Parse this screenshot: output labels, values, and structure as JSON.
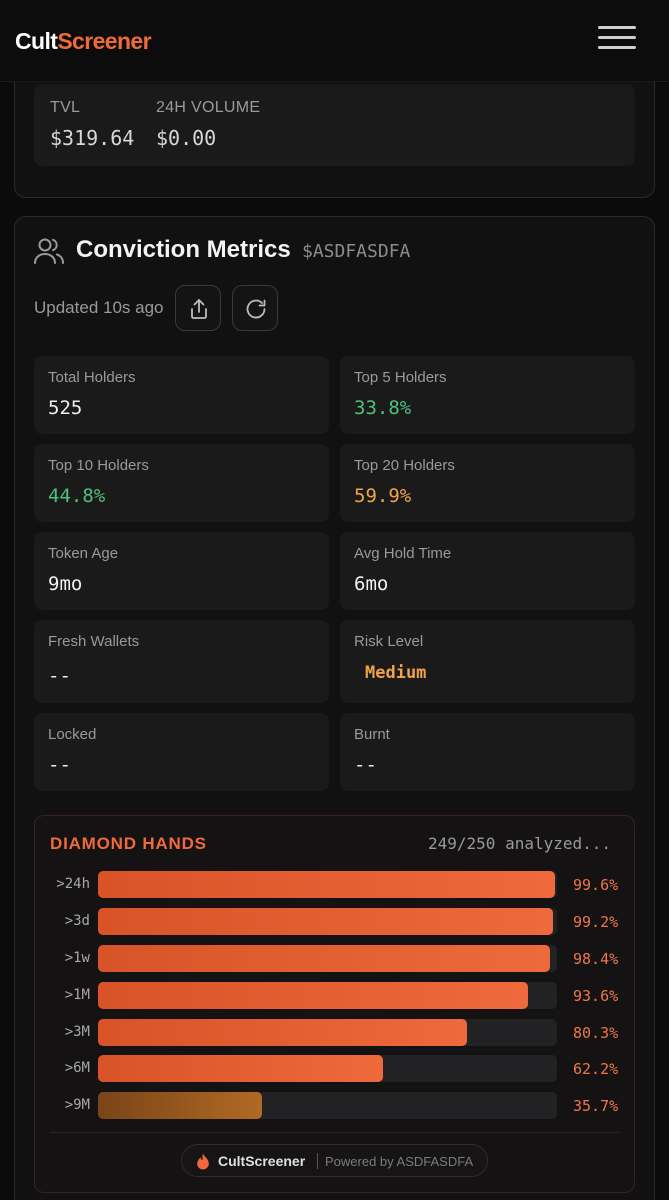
{
  "header": {
    "logo_part1": "Cult",
    "logo_part2": "Screener"
  },
  "stats": {
    "tvl_label": "TVL",
    "tvl_value": "$319.64",
    "volume_label": "24H VOLUME",
    "volume_value": "$0.00"
  },
  "conviction": {
    "title": "Conviction Metrics",
    "ticker": "$ASDFASDFA",
    "updated": "Updated 10s ago",
    "metrics": [
      {
        "label": "Total Holders",
        "value": "525",
        "color": "#f0f0f0"
      },
      {
        "label": "Top 5 Holders",
        "value": "33.8%",
        "color": "#4fbf7e"
      },
      {
        "label": "Top 10 Holders",
        "value": "44.8%",
        "color": "#4fbf7e"
      },
      {
        "label": "Top 20 Holders",
        "value": "59.9%",
        "color": "#f0a44a"
      },
      {
        "label": "Token Age",
        "value": "9mo",
        "color": "#f0f0f0"
      },
      {
        "label": "Avg Hold Time",
        "value": "6mo",
        "color": "#f0f0f0"
      },
      {
        "label": "Fresh Wallets",
        "value": "--",
        "color": "#f0f0f0"
      },
      {
        "label": "Risk Level",
        "value": "Medium",
        "color": "#f0a44a"
      },
      {
        "label": "Locked",
        "value": "--",
        "color": "#f0f0f0"
      },
      {
        "label": "Burnt",
        "value": "--",
        "color": "#f0f0f0"
      }
    ]
  },
  "diamond_hands": {
    "title": "DIAMOND HANDS",
    "analyzed": "249/250 analyzed...",
    "rows": [
      {
        "label": ">24h",
        "pct_text": "99.6%",
        "fraction": 0.996
      },
      {
        "label": ">3d",
        "pct_text": "99.2%",
        "fraction": 0.992
      },
      {
        "label": ">1w",
        "pct_text": "98.4%",
        "fraction": 0.984
      },
      {
        "label": ">1M",
        "pct_text": "93.6%",
        "fraction": 0.936
      },
      {
        "label": ">3M",
        "pct_text": "80.3%",
        "fraction": 0.803
      },
      {
        "label": ">6M",
        "pct_text": "62.2%",
        "fraction": 0.622
      },
      {
        "label": ">9M",
        "pct_text": "35.7%",
        "fraction": 0.357
      }
    ],
    "badge_name": "CultScreener",
    "badge_powered": "Powered by ASDFASDFA",
    "accent": "#ef6a3a"
  },
  "icons": {
    "menu": "hamburger-menu-icon",
    "users": "users-icon",
    "share": "share-icon",
    "refresh": "refresh-icon",
    "flame": "flame-icon"
  }
}
